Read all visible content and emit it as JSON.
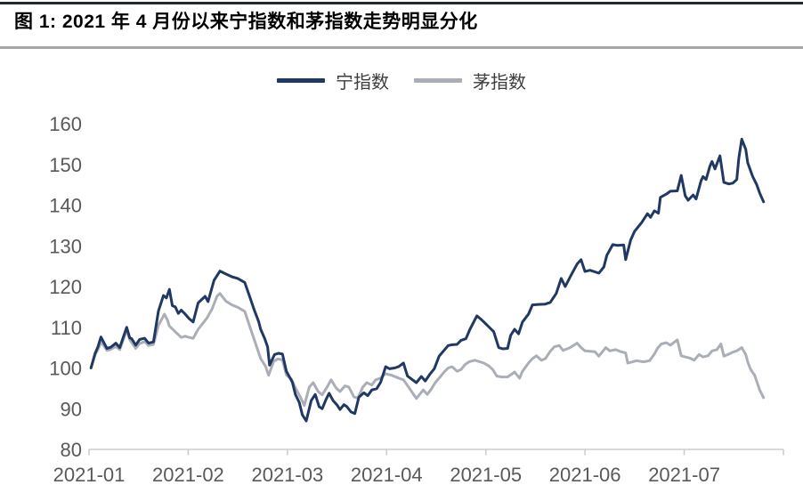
{
  "figure": {
    "title": "图 1: 2021 年 4 月份以来宁指数和茅指数走势明显分化"
  },
  "chart_data": {
    "type": "line",
    "title": "2021 年 4 月份以来宁指数和茅指数走势明显分化",
    "x_axis": {
      "unit": "months since 2021-01",
      "range": [
        0,
        7
      ],
      "tick_positions": [
        0,
        1,
        2,
        3,
        4,
        5,
        6
      ],
      "tick_labels": [
        "2021-01",
        "2021-02",
        "2021-03",
        "2021-04",
        "2021-05",
        "2021-06",
        "2021-07"
      ]
    },
    "y_axis": {
      "range": [
        80,
        160
      ],
      "ticks": [
        160,
        150,
        140,
        130,
        120,
        110,
        100,
        90,
        80
      ]
    },
    "legend": {
      "position": "top-center"
    },
    "grid": false,
    "series": [
      {
        "key": "ning-index",
        "name": "宁指数",
        "color": "#203864",
        "points": [
          [
            0.02,
            100
          ],
          [
            0.06,
            103.5
          ],
          [
            0.09,
            105.2
          ],
          [
            0.12,
            107.6
          ],
          [
            0.15,
            106.2
          ],
          [
            0.18,
            104.8
          ],
          [
            0.22,
            105.1
          ],
          [
            0.27,
            106.1
          ],
          [
            0.31,
            105.0
          ],
          [
            0.38,
            110.0
          ],
          [
            0.41,
            107.4
          ],
          [
            0.43,
            107.2
          ],
          [
            0.47,
            105.6
          ],
          [
            0.51,
            107.0
          ],
          [
            0.56,
            107.3
          ],
          [
            0.6,
            106.1
          ],
          [
            0.65,
            106.4
          ],
          [
            0.7,
            114.0
          ],
          [
            0.75,
            117.8
          ],
          [
            0.78,
            117.2
          ],
          [
            0.81,
            119.3
          ],
          [
            0.84,
            115.3
          ],
          [
            0.87,
            115.0
          ],
          [
            0.9,
            113.4
          ],
          [
            0.93,
            114.2
          ],
          [
            0.97,
            113.2
          ],
          [
            1.01,
            112.1
          ],
          [
            1.05,
            111.3
          ],
          [
            1.1,
            116.0
          ],
          [
            1.17,
            117.6
          ],
          [
            1.2,
            116.3
          ],
          [
            1.26,
            121.5
          ],
          [
            1.32,
            123.8
          ],
          [
            1.37,
            123.2
          ],
          [
            1.44,
            122.4
          ],
          [
            1.5,
            122.0
          ],
          [
            1.57,
            121.0
          ],
          [
            1.62,
            117.5
          ],
          [
            1.66,
            114.6
          ],
          [
            1.71,
            111.4
          ],
          [
            1.73,
            109.5
          ],
          [
            1.77,
            107.3
          ],
          [
            1.8,
            105.2
          ],
          [
            1.82,
            100.7
          ],
          [
            1.87,
            103.3
          ],
          [
            1.91,
            103.6
          ],
          [
            1.95,
            103.4
          ],
          [
            1.99,
            99.2
          ],
          [
            2.05,
            96.5
          ],
          [
            2.08,
            93.5
          ],
          [
            2.12,
            91.5
          ],
          [
            2.15,
            88.5
          ],
          [
            2.19,
            87.0
          ],
          [
            2.24,
            92.0
          ],
          [
            2.28,
            93.5
          ],
          [
            2.32,
            90.5
          ],
          [
            2.35,
            90.0
          ],
          [
            2.39,
            92.3
          ],
          [
            2.42,
            93.8
          ],
          [
            2.46,
            92.0
          ],
          [
            2.5,
            90.9
          ],
          [
            2.53,
            89.8
          ],
          [
            2.57,
            91.0
          ],
          [
            2.6,
            90.5
          ],
          [
            2.64,
            89.2
          ],
          [
            2.68,
            88.8
          ],
          [
            2.72,
            92.8
          ],
          [
            2.77,
            93.9
          ],
          [
            2.81,
            93.2
          ],
          [
            2.85,
            94.6
          ],
          [
            2.9,
            94.9
          ],
          [
            2.94,
            96.5
          ],
          [
            2.99,
            100.3
          ],
          [
            3.03,
            99.8
          ],
          [
            3.08,
            100.0
          ],
          [
            3.12,
            100.3
          ],
          [
            3.17,
            101.2
          ],
          [
            3.21,
            98.0
          ],
          [
            3.3,
            96.4
          ],
          [
            3.35,
            97.9
          ],
          [
            3.39,
            96.8
          ],
          [
            3.44,
            98.6
          ],
          [
            3.48,
            99.8
          ],
          [
            3.53,
            102.9
          ],
          [
            3.62,
            105.5
          ],
          [
            3.66,
            105.7
          ],
          [
            3.71,
            105.8
          ],
          [
            3.75,
            106.8
          ],
          [
            3.8,
            107.2
          ],
          [
            3.84,
            109.5
          ],
          [
            3.91,
            112.8
          ],
          [
            3.95,
            112.0
          ],
          [
            4.01,
            110.6
          ],
          [
            4.08,
            108.9
          ],
          [
            4.13,
            105.0
          ],
          [
            4.17,
            104.7
          ],
          [
            4.22,
            104.8
          ],
          [
            4.25,
            108.0
          ],
          [
            4.29,
            109.5
          ],
          [
            4.33,
            108.4
          ],
          [
            4.37,
            111.3
          ],
          [
            4.43,
            113.2
          ],
          [
            4.47,
            115.5
          ],
          [
            4.53,
            115.6
          ],
          [
            4.6,
            115.7
          ],
          [
            4.65,
            116.1
          ],
          [
            4.71,
            118.3
          ],
          [
            4.76,
            122.0
          ],
          [
            4.8,
            120.0
          ],
          [
            4.86,
            122.8
          ],
          [
            4.92,
            125.5
          ],
          [
            4.96,
            126.6
          ],
          [
            5.0,
            123.7
          ],
          [
            5.05,
            124.0
          ],
          [
            5.1,
            123.6
          ],
          [
            5.14,
            123.3
          ],
          [
            5.19,
            124.8
          ],
          [
            5.22,
            127.7
          ],
          [
            5.28,
            130.3
          ],
          [
            5.33,
            130.1
          ],
          [
            5.39,
            130.2
          ],
          [
            5.41,
            126.6
          ],
          [
            5.46,
            131.4
          ],
          [
            5.5,
            133.6
          ],
          [
            5.57,
            135.7
          ],
          [
            5.63,
            137.9
          ],
          [
            5.66,
            137.0
          ],
          [
            5.7,
            138.6
          ],
          [
            5.74,
            138.0
          ],
          [
            5.76,
            141.9
          ],
          [
            5.82,
            142.7
          ],
          [
            5.86,
            143.4
          ],
          [
            5.93,
            143.5
          ],
          [
            5.97,
            147.3
          ],
          [
            6.01,
            142.3
          ],
          [
            6.04,
            141.2
          ],
          [
            6.09,
            142.5
          ],
          [
            6.12,
            141.5
          ],
          [
            6.17,
            146.0
          ],
          [
            6.19,
            147.0
          ],
          [
            6.22,
            146.3
          ],
          [
            6.26,
            149.6
          ],
          [
            6.28,
            150.7
          ],
          [
            6.31,
            148.9
          ],
          [
            6.36,
            152.1
          ],
          [
            6.4,
            145.6
          ],
          [
            6.45,
            145.2
          ],
          [
            6.49,
            145.4
          ],
          [
            6.53,
            146.3
          ],
          [
            6.55,
            151.5
          ],
          [
            6.58,
            156.2
          ],
          [
            6.62,
            153.7
          ],
          [
            6.64,
            150.4
          ],
          [
            6.69,
            147.0
          ],
          [
            6.73,
            145.1
          ],
          [
            6.76,
            143.0
          ],
          [
            6.8,
            140.8
          ]
        ]
      },
      {
        "key": "mao-index",
        "name": "茅指数",
        "color": "#a9aeb7",
        "points": [
          [
            0.02,
            100
          ],
          [
            0.06,
            103.2
          ],
          [
            0.09,
            104.5
          ],
          [
            0.12,
            106.3
          ],
          [
            0.15,
            105.5
          ],
          [
            0.18,
            104.3
          ],
          [
            0.22,
            104.6
          ],
          [
            0.27,
            105.3
          ],
          [
            0.31,
            104.5
          ],
          [
            0.38,
            109.3
          ],
          [
            0.41,
            107.0
          ],
          [
            0.47,
            104.8
          ],
          [
            0.51,
            106.0
          ],
          [
            0.56,
            106.5
          ],
          [
            0.6,
            105.5
          ],
          [
            0.65,
            105.8
          ],
          [
            0.7,
            110.5
          ],
          [
            0.76,
            113.2
          ],
          [
            0.79,
            111.8
          ],
          [
            0.81,
            110.3
          ],
          [
            0.87,
            108.9
          ],
          [
            0.93,
            107.5
          ],
          [
            0.97,
            107.8
          ],
          [
            1.01,
            107.5
          ],
          [
            1.05,
            107.3
          ],
          [
            1.1,
            109.5
          ],
          [
            1.19,
            112.3
          ],
          [
            1.24,
            114.5
          ],
          [
            1.29,
            117.6
          ],
          [
            1.32,
            118.3
          ],
          [
            1.38,
            116.4
          ],
          [
            1.44,
            115.5
          ],
          [
            1.5,
            114.9
          ],
          [
            1.57,
            113.9
          ],
          [
            1.6,
            111.7
          ],
          [
            1.64,
            108.8
          ],
          [
            1.69,
            105.2
          ],
          [
            1.73,
            102.3
          ],
          [
            1.78,
            100.4
          ],
          [
            1.81,
            98.2
          ],
          [
            1.86,
            101.6
          ],
          [
            1.9,
            102.2
          ],
          [
            1.95,
            102.0
          ],
          [
            1.99,
            98.3
          ],
          [
            2.04,
            97.3
          ],
          [
            2.08,
            95.1
          ],
          [
            2.13,
            92.9
          ],
          [
            2.17,
            90.8
          ],
          [
            2.22,
            95.3
          ],
          [
            2.26,
            96.4
          ],
          [
            2.31,
            94.2
          ],
          [
            2.35,
            93.4
          ],
          [
            2.4,
            95.3
          ],
          [
            2.44,
            97.1
          ],
          [
            2.49,
            95.1
          ],
          [
            2.53,
            94.2
          ],
          [
            2.58,
            95.6
          ],
          [
            2.62,
            95.3
          ],
          [
            2.67,
            92.9
          ],
          [
            2.71,
            92.6
          ],
          [
            2.76,
            95.3
          ],
          [
            2.8,
            96.4
          ],
          [
            2.85,
            95.8
          ],
          [
            2.89,
            97.1
          ],
          [
            2.94,
            97.5
          ],
          [
            2.99,
            98.6
          ],
          [
            3.05,
            98.2
          ],
          [
            3.12,
            97.5
          ],
          [
            3.17,
            97.1
          ],
          [
            3.23,
            95.0
          ],
          [
            3.28,
            93.2
          ],
          [
            3.3,
            92.5
          ],
          [
            3.37,
            94.6
          ],
          [
            3.41,
            93.5
          ],
          [
            3.45,
            94.8
          ],
          [
            3.49,
            96.4
          ],
          [
            3.53,
            97.5
          ],
          [
            3.58,
            99.0
          ],
          [
            3.62,
            100.0
          ],
          [
            3.66,
            100.3
          ],
          [
            3.71,
            99.2
          ],
          [
            3.75,
            99.6
          ],
          [
            3.79,
            100.8
          ],
          [
            3.83,
            101.5
          ],
          [
            3.89,
            101.9
          ],
          [
            3.98,
            101.2
          ],
          [
            4.03,
            100.5
          ],
          [
            4.07,
            99.6
          ],
          [
            4.11,
            98.0
          ],
          [
            4.16,
            97.8
          ],
          [
            4.22,
            97.8
          ],
          [
            4.29,
            99.0
          ],
          [
            4.34,
            97.5
          ],
          [
            4.37,
            99.2
          ],
          [
            4.43,
            101.2
          ],
          [
            4.47,
            102.3
          ],
          [
            4.51,
            103.0
          ],
          [
            4.56,
            101.9
          ],
          [
            4.6,
            102.3
          ],
          [
            4.65,
            104.1
          ],
          [
            4.69,
            105.2
          ],
          [
            4.74,
            105.5
          ],
          [
            4.78,
            104.3
          ],
          [
            4.85,
            105.0
          ],
          [
            4.92,
            106.1
          ],
          [
            4.96,
            105.0
          ],
          [
            5.0,
            104.2
          ],
          [
            5.1,
            104.0
          ],
          [
            5.14,
            102.9
          ],
          [
            5.21,
            105.0
          ],
          [
            5.25,
            104.2
          ],
          [
            5.31,
            104.5
          ],
          [
            5.36,
            104.0
          ],
          [
            5.41,
            103.7
          ],
          [
            5.43,
            101.2
          ],
          [
            5.48,
            101.5
          ],
          [
            5.52,
            101.8
          ],
          [
            5.59,
            101.5
          ],
          [
            5.65,
            101.8
          ],
          [
            5.7,
            103.4
          ],
          [
            5.73,
            104.8
          ],
          [
            5.77,
            105.9
          ],
          [
            5.82,
            106.2
          ],
          [
            5.86,
            105.6
          ],
          [
            5.93,
            106.9
          ],
          [
            5.97,
            103.0
          ],
          [
            6.01,
            102.7
          ],
          [
            6.06,
            102.4
          ],
          [
            6.1,
            101.9
          ],
          [
            6.15,
            103.3
          ],
          [
            6.19,
            102.7
          ],
          [
            6.24,
            103.0
          ],
          [
            6.28,
            104.2
          ],
          [
            6.33,
            104.5
          ],
          [
            6.37,
            105.9
          ],
          [
            6.4,
            102.9
          ],
          [
            6.44,
            103.3
          ],
          [
            6.49,
            103.9
          ],
          [
            6.53,
            104.2
          ],
          [
            6.58,
            105.0
          ],
          [
            6.62,
            103.3
          ],
          [
            6.64,
            101.5
          ],
          [
            6.67,
            99.6
          ],
          [
            6.71,
            98.2
          ],
          [
            6.73,
            96.8
          ],
          [
            6.76,
            94.6
          ],
          [
            6.8,
            92.7
          ]
        ]
      }
    ]
  }
}
